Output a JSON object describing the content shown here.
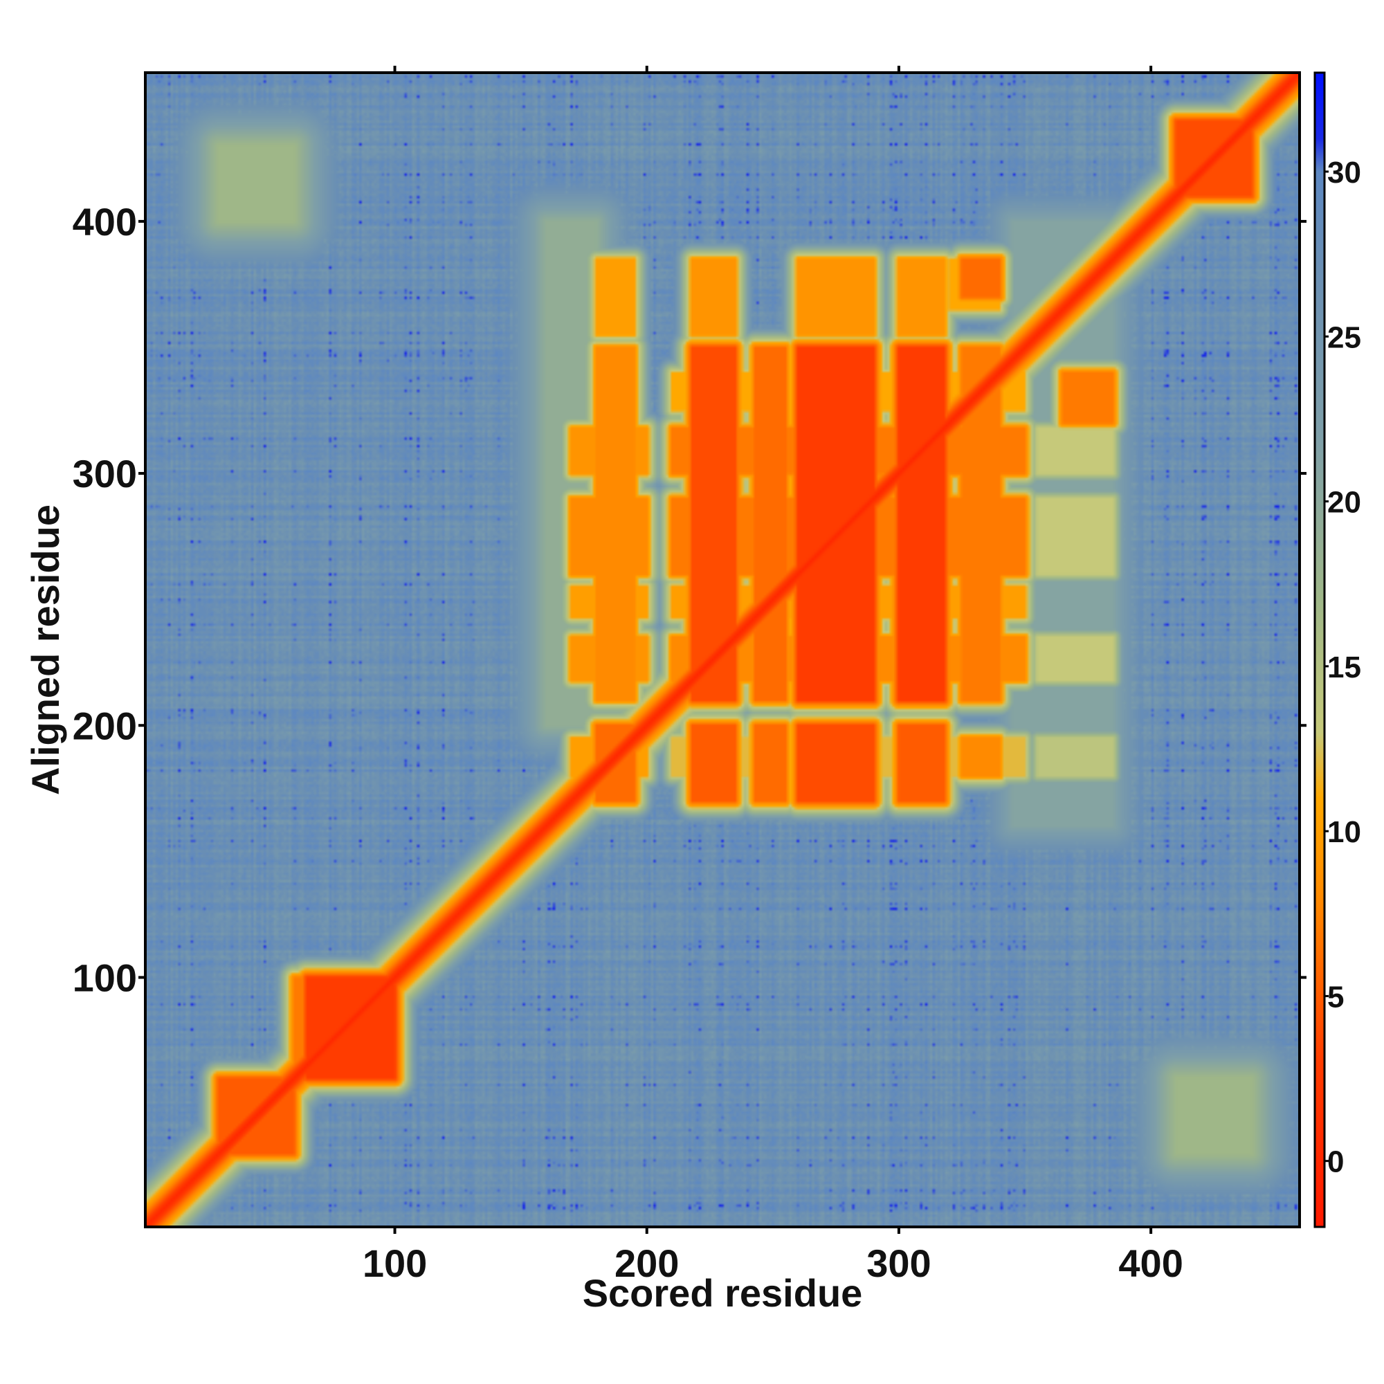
{
  "chart_data": {
    "type": "heatmap",
    "title": "",
    "xlabel": "Scored residue",
    "ylabel": "Aligned residue",
    "xlim": [
      1,
      459
    ],
    "ylim": [
      1,
      459
    ],
    "x_ticks": [
      100,
      200,
      300,
      400
    ],
    "y_ticks": [
      100,
      200,
      300,
      400
    ],
    "colorbar": {
      "range": [
        -2,
        33
      ],
      "ticks": [
        0,
        5,
        10,
        15,
        20,
        25,
        30
      ],
      "stops": [
        {
          "value": -2,
          "color": "#ff1a00"
        },
        {
          "value": 3,
          "color": "#ff3c00"
        },
        {
          "value": 8,
          "color": "#ff8a00"
        },
        {
          "value": 11,
          "color": "#ffa800"
        },
        {
          "value": 13,
          "color": "#c6c97a"
        },
        {
          "value": 17,
          "color": "#9fb788"
        },
        {
          "value": 22,
          "color": "#7e9fa9"
        },
        {
          "value": 27,
          "color": "#6a8fb4"
        },
        {
          "value": 30,
          "color": "#5d88c2"
        },
        {
          "value": 31,
          "color": "#1a2ae6"
        },
        {
          "value": 33,
          "color": "#0010ff"
        }
      ]
    },
    "background_value": 27,
    "diagonal_value": 0,
    "blocks": [
      {
        "x": [
          30,
          60
        ],
        "y": [
          30,
          60
        ],
        "value": 5
      },
      {
        "x": [
          65,
          100
        ],
        "y": [
          60,
          100
        ],
        "value": 3
      },
      {
        "x": [
          410,
          440
        ],
        "y": [
          410,
          440
        ],
        "value": 4
      },
      {
        "x": [
          180,
          195
        ],
        "y": [
          170,
          200
        ],
        "value": 6
      },
      {
        "x": [
          180,
          195
        ],
        "y": [
          210,
          350
        ],
        "value": 8
      },
      {
        "x": [
          180,
          195
        ],
        "y": [
          355,
          385
        ],
        "value": 10
      },
      {
        "x": [
          218,
          235
        ],
        "y": [
          170,
          200
        ],
        "value": 5
      },
      {
        "x": [
          218,
          235
        ],
        "y": [
          210,
          350
        ],
        "value": 4
      },
      {
        "x": [
          218,
          235
        ],
        "y": [
          355,
          385
        ],
        "value": 9
      },
      {
        "x": [
          243,
          255
        ],
        "y": [
          170,
          200
        ],
        "value": 6
      },
      {
        "x": [
          243,
          255
        ],
        "y": [
          210,
          350
        ],
        "value": 6
      },
      {
        "x": [
          260,
          290
        ],
        "y": [
          170,
          200
        ],
        "value": 4
      },
      {
        "x": [
          260,
          290
        ],
        "y": [
          210,
          350
        ],
        "value": 3
      },
      {
        "x": [
          260,
          290
        ],
        "y": [
          355,
          385
        ],
        "value": 9
      },
      {
        "x": [
          300,
          318
        ],
        "y": [
          170,
          200
        ],
        "value": 5
      },
      {
        "x": [
          300,
          318
        ],
        "y": [
          210,
          350
        ],
        "value": 3
      },
      {
        "x": [
          300,
          318
        ],
        "y": [
          355,
          385
        ],
        "value": 9
      },
      {
        "x": [
          325,
          340
        ],
        "y": [
          210,
          350
        ],
        "value": 7
      },
      {
        "x": [
          325,
          340
        ],
        "y": [
          180,
          195
        ],
        "value": 8
      },
      {
        "x": [
          325,
          340
        ],
        "y": [
          370,
          385
        ],
        "value": 6
      },
      {
        "x": [
          365,
          385
        ],
        "y": [
          320,
          340
        ],
        "value": 7
      }
    ],
    "light_patches": [
      {
        "x": [
          30,
          60
        ],
        "y": [
          400,
          430
        ],
        "value": 17
      },
      {
        "x": [
          410,
          440
        ],
        "y": [
          30,
          60
        ],
        "value": 17
      },
      {
        "x": [
          160,
          180
        ],
        "y": [
          200,
          400
        ],
        "value": 19
      },
      {
        "x": [
          345,
          385
        ],
        "y": [
          160,
          400
        ],
        "value": 21
      }
    ]
  }
}
